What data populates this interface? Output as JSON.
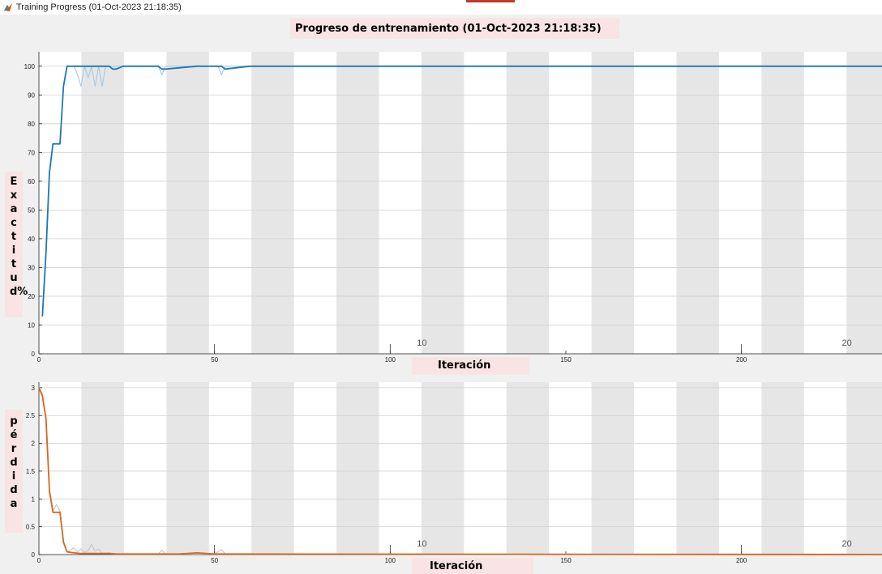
{
  "window": {
    "title": "Training Progress (01-Oct-2023 21:18:35)",
    "accent_color": "#c0392b"
  },
  "figure": {
    "title": "Progreso de entrenamiento (01-Oct-2023 21:18:35)"
  },
  "colors": {
    "accuracy_line": "#1f77b4",
    "accuracy_raw": "#a9cce3",
    "loss_line": "#d9661f",
    "loss_raw": "#c9c9c9",
    "band_gray": "#e6e6e6",
    "band_white": "#ffffff"
  },
  "chart_data": [
    {
      "type": "line",
      "ylabel": "Exactitud%",
      "xlabel": "Iteración",
      "xlim": [
        0,
        240
      ],
      "ylim": [
        0,
        105
      ],
      "xticks": [
        0,
        50,
        100,
        150,
        200
      ],
      "yticks": [
        0,
        10,
        20,
        30,
        40,
        50,
        60,
        70,
        80,
        90,
        100
      ],
      "epoch_labels": [
        {
          "label": "10",
          "x": 109
        },
        {
          "label": "20",
          "x": 230
        }
      ],
      "grid": true,
      "series": [
        {
          "role": "raw",
          "x": [
            1,
            2,
            3,
            4,
            5,
            6,
            7,
            8,
            9,
            10,
            11,
            12,
            13,
            14,
            15,
            16,
            17,
            18,
            19,
            20,
            22,
            24,
            30,
            34,
            35,
            36,
            40,
            50,
            51,
            52,
            53,
            60,
            240
          ],
          "y": [
            13,
            35,
            63,
            73,
            73,
            73,
            93,
            100,
            100,
            100,
            97,
            93,
            100,
            96,
            100,
            93,
            100,
            93,
            100,
            100,
            100,
            100,
            100,
            100,
            97,
            100,
            100,
            100,
            100,
            97,
            100,
            100,
            100
          ]
        },
        {
          "role": "smoothed",
          "x": [
            1,
            2,
            3,
            4,
            5,
            6,
            7,
            8,
            9,
            10,
            15,
            20,
            21,
            22,
            24,
            34,
            35,
            36,
            45,
            52,
            53,
            60,
            62,
            240
          ],
          "y": [
            13,
            35,
            63,
            73,
            73,
            73,
            93,
            100,
            100,
            100,
            100,
            100,
            99,
            99,
            100,
            100,
            99,
            99,
            100,
            100,
            99,
            100,
            100,
            100
          ]
        }
      ]
    },
    {
      "type": "line",
      "ylabel": "pérdida",
      "xlabel": "Iteración",
      "xlim": [
        0,
        240
      ],
      "ylim": [
        0,
        3.1
      ],
      "xticks": [
        0,
        50,
        100,
        150,
        200
      ],
      "yticks": [
        0,
        0.5,
        1,
        1.5,
        2,
        2.5,
        3
      ],
      "epoch_labels": [
        {
          "label": "10",
          "x": 109
        },
        {
          "label": "20",
          "x": 230
        }
      ],
      "grid": true,
      "series": [
        {
          "role": "raw",
          "x": [
            0,
            1,
            2,
            3,
            4,
            5,
            6,
            7,
            8,
            9,
            10,
            11,
            12,
            13,
            14,
            15,
            16,
            17,
            18,
            20,
            22,
            30,
            34,
            35,
            36,
            40,
            50,
            52,
            53,
            60,
            240
          ],
          "y": [
            3.0,
            2.9,
            2.4,
            1.1,
            0.78,
            0.9,
            0.78,
            0.25,
            0.05,
            0.08,
            0.12,
            0.05,
            0.1,
            0.04,
            0.07,
            0.18,
            0.06,
            0.1,
            0.02,
            0.03,
            0.01,
            0.01,
            0.01,
            0.08,
            0.01,
            0.01,
            0.01,
            0.09,
            0.01,
            0.01,
            0.01
          ]
        },
        {
          "role": "smoothed",
          "x": [
            0,
            1,
            2,
            3,
            4,
            5,
            6,
            7,
            8,
            9,
            10,
            12,
            15,
            20,
            22,
            30,
            40,
            45,
            50,
            55,
            240
          ],
          "y": [
            3.0,
            2.85,
            2.45,
            1.15,
            0.76,
            0.76,
            0.76,
            0.22,
            0.05,
            0.04,
            0.03,
            0.02,
            0.02,
            0.02,
            0.01,
            0.01,
            0.01,
            0.03,
            0.01,
            0.01,
            0.0
          ]
        }
      ]
    }
  ]
}
